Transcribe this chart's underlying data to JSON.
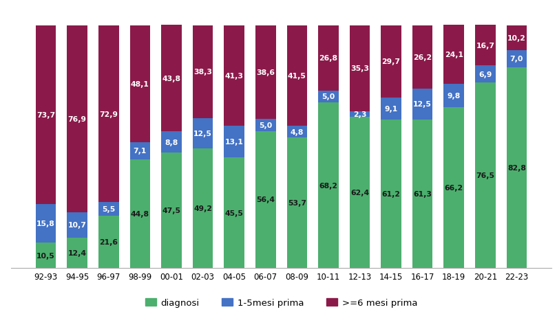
{
  "categories": [
    "92-93",
    "94-95",
    "96-97",
    "98-99",
    "00-01",
    "02-03",
    "04-05",
    "06-07",
    "08-09",
    "10-11",
    "12-13",
    "14-15",
    "16-17",
    "18-19",
    "20-21",
    "22-23"
  ],
  "diagnosi": [
    10.5,
    12.4,
    21.6,
    44.8,
    47.5,
    49.2,
    45.5,
    56.4,
    53.7,
    68.2,
    62.4,
    61.2,
    61.3,
    66.2,
    76.5,
    82.8
  ],
  "mesi_1_5": [
    15.8,
    10.7,
    5.5,
    7.1,
    8.8,
    12.5,
    13.1,
    5.0,
    4.8,
    5.0,
    2.3,
    9.1,
    12.5,
    9.8,
    6.9,
    7.0
  ],
  "mesi_6p": [
    73.7,
    76.9,
    72.9,
    48.1,
    43.8,
    38.3,
    41.3,
    38.6,
    41.5,
    26.8,
    35.3,
    29.7,
    26.2,
    24.1,
    16.7,
    10.2
  ],
  "color_diagnosi": "#4CAF6E",
  "color_mesi_1_5": "#4472C4",
  "color_mesi_6p": "#8B1A4A",
  "legend_labels": [
    "diagnosi",
    "1-5mesi prima",
    ">=6 mesi prima"
  ],
  "label_color_diagnosi": "#1a1a1a",
  "label_color_mesi_1_5": "#ffffff",
  "label_color_mesi_6p": "#ffffff",
  "figsize": [
    8.09,
    4.77
  ],
  "dpi": 100,
  "ylim_max": 108,
  "bar_width": 0.65,
  "fontsize_labels": 7.8,
  "fontsize_xticks": 8.5
}
